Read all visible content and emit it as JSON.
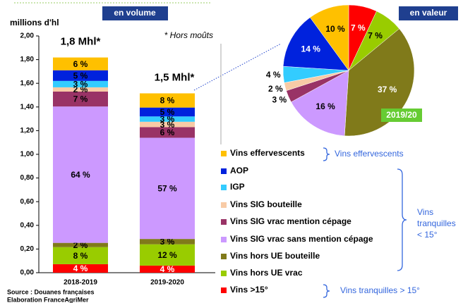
{
  "chart_data": [
    {
      "type": "bar",
      "title": "en volume",
      "y_label": "millions d'hl",
      "note": "* Hors moûts",
      "source": [
        "Source : Douanes françaises",
        "Elaboration FranceAgriMer"
      ],
      "categories": [
        "2018-2019",
        "2019-2020"
      ],
      "totals": [
        {
          "value": 1.8,
          "label": "1,8 Mhl*"
        },
        {
          "value": 1.5,
          "label": "1,5 Mhl*"
        }
      ],
      "ylim": [
        0,
        2
      ],
      "yticks": [
        {
          "value": 0,
          "label": "0,00"
        },
        {
          "value": 0.2,
          "label": "0,20"
        },
        {
          "value": 0.4,
          "label": "0,40"
        },
        {
          "value": 0.6,
          "label": "0,60"
        },
        {
          "value": 0.8,
          "label": "0,80"
        },
        {
          "value": 1,
          "label": "1,00"
        },
        {
          "value": 1.2,
          "label": "1,20"
        },
        {
          "value": 1.4,
          "label": "1,40"
        },
        {
          "value": 1.6,
          "label": "1,60"
        },
        {
          "value": 1.8,
          "label": "1,80"
        },
        {
          "value": 2,
          "label": "2,00"
        }
      ],
      "series": [
        {
          "name": "Vins >15°",
          "color": "#ff0000",
          "shares": [
            4,
            4
          ],
          "value_labels": [
            "4 %",
            "4 %"
          ]
        },
        {
          "name": "Vins hors UE vrac",
          "color": "#99cc00",
          "shares": [
            8,
            12
          ],
          "value_labels": [
            "8 %",
            "12 %"
          ]
        },
        {
          "name": "Vins hors UE bouteille",
          "color": "#807a1a",
          "shares": [
            2,
            3
          ],
          "value_labels": [
            "2 %",
            "3 %"
          ]
        },
        {
          "name": "Vins SIG vrac sans mention cépage",
          "color": "#cc99ff",
          "shares": [
            64,
            57
          ],
          "value_labels": [
            "64 %",
            "57 %"
          ]
        },
        {
          "name": "Vins SIG vrac mention cépage",
          "color": "#993366",
          "shares": [
            7,
            6
          ],
          "value_labels": [
            "7 %",
            "6 %"
          ]
        },
        {
          "name": "Vins SIG bouteille",
          "color": "#f8cba6",
          "shares": [
            2,
            3
          ],
          "value_labels": [
            "2 %",
            "3 %"
          ]
        },
        {
          "name": "IGP",
          "color": "#33ccff",
          "shares": [
            3,
            3
          ],
          "value_labels": [
            "3 %",
            "3 %"
          ]
        },
        {
          "name": "AOP",
          "color": "#0022dd",
          "shares": [
            5,
            5
          ],
          "value_labels": [
            "5 %",
            "5 %"
          ]
        },
        {
          "name": "Vins effervescents",
          "color": "#ffc000",
          "shares": [
            6,
            8
          ],
          "value_labels": [
            "6 %",
            "8 %"
          ]
        }
      ],
      "annotations": [
        "Vins effervescents",
        "Vins",
        "tranquilles",
        "< 15°",
        "Vins tranquilles > 15°"
      ]
    },
    {
      "type": "pie",
      "title": "en valeur",
      "label": "2019/20",
      "values": [
        7,
        7,
        37,
        16,
        3,
        2,
        4,
        14,
        10
      ],
      "value_labels": [
        "7 %",
        "7 %",
        "37 %",
        "16 %",
        "3 %",
        "2 %",
        "4 %",
        "14 %",
        "10 %"
      ],
      "colors": [
        "#ff0000",
        "#99cc00",
        "#807a1a",
        "#cc99ff",
        "#993366",
        "#f8cba6",
        "#33ccff",
        "#0022dd",
        "#ffc000"
      ]
    }
  ]
}
